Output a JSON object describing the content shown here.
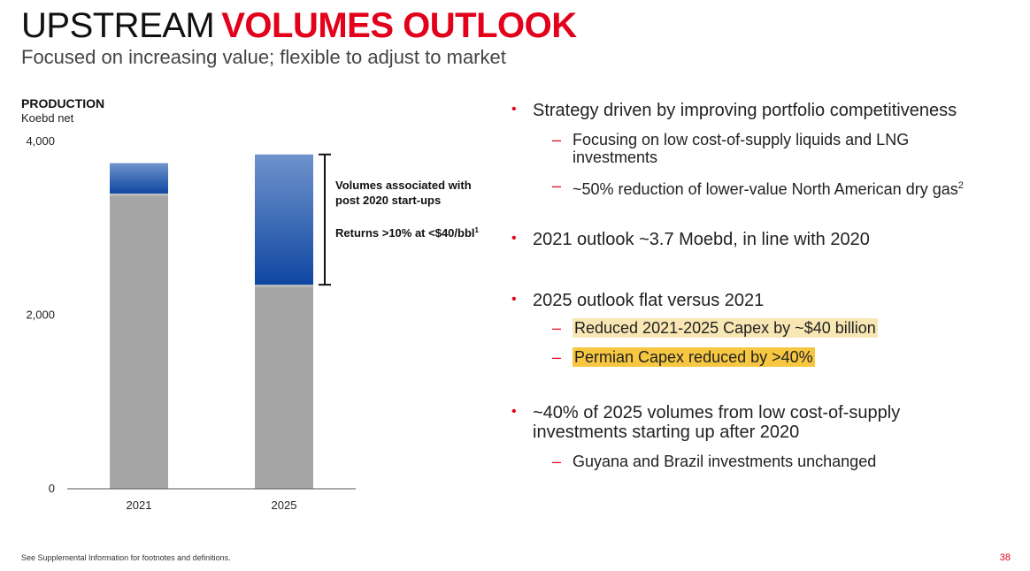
{
  "header": {
    "title_part1": "UPSTREAM",
    "title_part2": "VOLUMES OUTLOOK",
    "subtitle": "Focused on increasing value; flexible to adjust to market"
  },
  "chart_data": {
    "type": "bar",
    "title": "PRODUCTION",
    "ylabel": "Koebd net",
    "categories": [
      "2021",
      "2025"
    ],
    "series": [
      {
        "name": "",
        "values": [
          3400,
          2350
        ],
        "color": "#a6a6a6"
      },
      {
        "name": "Volumes associated with post 2020 start-ups",
        "values": [
          350,
          1500
        ],
        "color": "#0f47a1"
      }
    ],
    "ylim": [
      0,
      4000
    ],
    "yticks": [
      0,
      2000,
      4000
    ],
    "ytick_labels": [
      "0",
      "2,000",
      "4,000"
    ],
    "annotation": {
      "line1": "Volumes associated with",
      "line2": "post 2020 start-ups",
      "line3": "Returns >10% at <$40/bbl",
      "line3_sup": "1"
    }
  },
  "bullets": {
    "b1": "Strategy driven by improving portfolio competitiveness",
    "b1_s1_line1": "Focusing on low cost-of-supply liquids and LNG",
    "b1_s1_line2": "investments",
    "b1_s2": "~50% reduction of lower-value North American dry gas",
    "b1_s2_sup": "2",
    "b2": "2021 outlook ~3.7 Moebd, in line with 2020",
    "b3": "2025 outlook flat versus 2021",
    "b3_s1": "Reduced 2021-2025 Capex by ~$40 billion",
    "b3_s2": "Permian Capex reduced by >40%",
    "b4_line1": "~40% of 2025 volumes from low cost-of-supply",
    "b4_line2": "investments starting up after 2020",
    "b4_s1": "Guyana and Brazil investments unchanged"
  },
  "footer": {
    "note": "See Supplemental Information for footnotes and definitions.",
    "page": "38"
  },
  "colors": {
    "accent": "#e2001a",
    "bar_gray": "#a6a6a6",
    "bar_blue": "#0f47a1"
  }
}
